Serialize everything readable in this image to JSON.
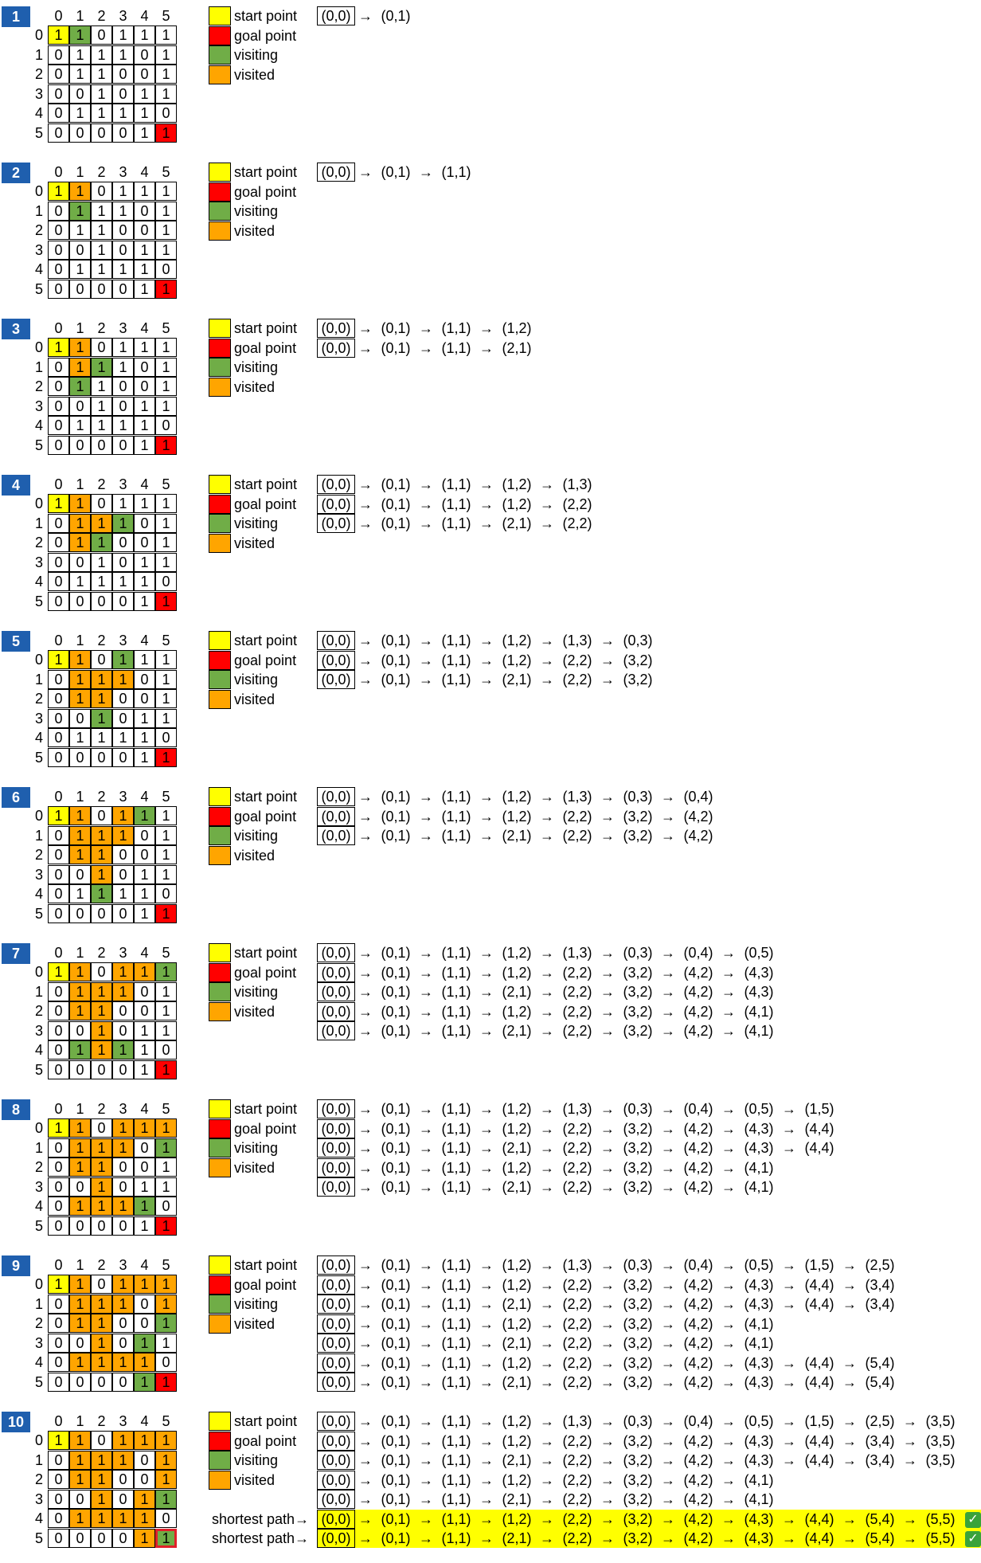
{
  "column_labels": [
    "0",
    "1",
    "2",
    "3",
    "4",
    "5"
  ],
  "row_labels": [
    "0",
    "1",
    "2",
    "3",
    "4",
    "5"
  ],
  "legend": [
    {
      "label": "start point",
      "color": "#ffff00"
    },
    {
      "label": "goal point",
      "color": "#ff0000"
    },
    {
      "label": "visiting",
      "color": "#70ad47"
    },
    {
      "label": "visited",
      "color": "#ffa500"
    }
  ],
  "arrow": "→",
  "shortest_label": "shortest path→",
  "check_icon": "✓",
  "base_grid": [
    [
      "1",
      "1",
      "0",
      "1",
      "1",
      "1"
    ],
    [
      "0",
      "1",
      "1",
      "1",
      "0",
      "1"
    ],
    [
      "0",
      "1",
      "1",
      "0",
      "0",
      "1"
    ],
    [
      "0",
      "0",
      "1",
      "0",
      "1",
      "1"
    ],
    [
      "0",
      "1",
      "1",
      "1",
      "1",
      "0"
    ],
    [
      "0",
      "0",
      "0",
      "0",
      "1",
      "1"
    ]
  ],
  "steps": [
    {
      "number": "1",
      "colors": [
        "SGNNNN",
        "NNNNNN",
        "NNNNNN",
        "NNNNNN",
        "NNNNNN",
        "NNNNNR"
      ],
      "paths": [
        [
          "(0,0)",
          "(0,1)"
        ]
      ]
    },
    {
      "number": "2",
      "colors": [
        "SVNNNN",
        "NGNNNN",
        "NNNNNN",
        "NNNNNN",
        "NNNNNN",
        "NNNNNR"
      ],
      "paths": [
        [
          "(0,0)",
          "(0,1)",
          "(1,1)"
        ]
      ]
    },
    {
      "number": "3",
      "colors": [
        "SVNNNN",
        "NVGNNN",
        "NGNNNN",
        "NNNNNN",
        "NNNNNN",
        "NNNNNR"
      ],
      "paths": [
        [
          "(0,0)",
          "(0,1)",
          "(1,1)",
          "(1,2)"
        ],
        [
          "(0,0)",
          "(0,1)",
          "(1,1)",
          "(2,1)"
        ]
      ]
    },
    {
      "number": "4",
      "colors": [
        "SVNNNN",
        "NVVGNN",
        "NVGNNN",
        "NNNNNN",
        "NNNNNN",
        "NNNNNR"
      ],
      "paths": [
        [
          "(0,0)",
          "(0,1)",
          "(1,1)",
          "(1,2)",
          "(1,3)"
        ],
        [
          "(0,0)",
          "(0,1)",
          "(1,1)",
          "(1,2)",
          "(2,2)"
        ],
        [
          "(0,0)",
          "(0,1)",
          "(1,1)",
          "(2,1)",
          "(2,2)"
        ]
      ]
    },
    {
      "number": "5",
      "colors": [
        "SVNGNN",
        "NVVVNN",
        "NVVNNN",
        "NNGNNN",
        "NNNNNN",
        "NNNNNR"
      ],
      "paths": [
        [
          "(0,0)",
          "(0,1)",
          "(1,1)",
          "(1,2)",
          "(1,3)",
          "(0,3)"
        ],
        [
          "(0,0)",
          "(0,1)",
          "(1,1)",
          "(1,2)",
          "(2,2)",
          "(3,2)"
        ],
        [
          "(0,0)",
          "(0,1)",
          "(1,1)",
          "(2,1)",
          "(2,2)",
          "(3,2)"
        ]
      ]
    },
    {
      "number": "6",
      "colors": [
        "SVNVGN",
        "NVVVNN",
        "NVVNNN",
        "NNVNNN",
        "NNGNNN",
        "NNNNNR"
      ],
      "paths": [
        [
          "(0,0)",
          "(0,1)",
          "(1,1)",
          "(1,2)",
          "(1,3)",
          "(0,3)",
          "(0,4)"
        ],
        [
          "(0,0)",
          "(0,1)",
          "(1,1)",
          "(1,2)",
          "(2,2)",
          "(3,2)",
          "(4,2)"
        ],
        [
          "(0,0)",
          "(0,1)",
          "(1,1)",
          "(2,1)",
          "(2,2)",
          "(3,2)",
          "(4,2)"
        ]
      ]
    },
    {
      "number": "7",
      "colors": [
        "SVNVVG",
        "NVVVNN",
        "NVVNNN",
        "NNVNNN",
        "NGVGNN",
        "NNNNNR"
      ],
      "paths": [
        [
          "(0,0)",
          "(0,1)",
          "(1,1)",
          "(1,2)",
          "(1,3)",
          "(0,3)",
          "(0,4)",
          "(0,5)"
        ],
        [
          "(0,0)",
          "(0,1)",
          "(1,1)",
          "(1,2)",
          "(2,2)",
          "(3,2)",
          "(4,2)",
          "(4,3)"
        ],
        [
          "(0,0)",
          "(0,1)",
          "(1,1)",
          "(2,1)",
          "(2,2)",
          "(3,2)",
          "(4,2)",
          "(4,3)"
        ],
        [
          "(0,0)",
          "(0,1)",
          "(1,1)",
          "(1,2)",
          "(2,2)",
          "(3,2)",
          "(4,2)",
          "(4,1)"
        ],
        [
          "(0,0)",
          "(0,1)",
          "(1,1)",
          "(2,1)",
          "(2,2)",
          "(3,2)",
          "(4,2)",
          "(4,1)"
        ]
      ]
    },
    {
      "number": "8",
      "colors": [
        "SVNVVV",
        "NVVVNG",
        "NVVNNN",
        "NNVNNN",
        "NVVVGN",
        "NNNNNR"
      ],
      "paths": [
        [
          "(0,0)",
          "(0,1)",
          "(1,1)",
          "(1,2)",
          "(1,3)",
          "(0,3)",
          "(0,4)",
          "(0,5)",
          "(1,5)"
        ],
        [
          "(0,0)",
          "(0,1)",
          "(1,1)",
          "(1,2)",
          "(2,2)",
          "(3,2)",
          "(4,2)",
          "(4,3)",
          "(4,4)"
        ],
        [
          "(0,0)",
          "(0,1)",
          "(1,1)",
          "(2,1)",
          "(2,2)",
          "(3,2)",
          "(4,2)",
          "(4,3)",
          "(4,4)"
        ],
        [
          "(0,0)",
          "(0,1)",
          "(1,1)",
          "(1,2)",
          "(2,2)",
          "(3,2)",
          "(4,2)",
          "(4,1)"
        ],
        [
          "(0,0)",
          "(0,1)",
          "(1,1)",
          "(2,1)",
          "(2,2)",
          "(3,2)",
          "(4,2)",
          "(4,1)"
        ]
      ]
    },
    {
      "number": "9",
      "colors": [
        "SVNVVV",
        "NVVVNV",
        "NVVNNG",
        "NNVNGN",
        "NVVVVN",
        "NNNNGR"
      ],
      "paths": [
        [
          "(0,0)",
          "(0,1)",
          "(1,1)",
          "(1,2)",
          "(1,3)",
          "(0,3)",
          "(0,4)",
          "(0,5)",
          "(1,5)",
          "(2,5)"
        ],
        [
          "(0,0)",
          "(0,1)",
          "(1,1)",
          "(1,2)",
          "(2,2)",
          "(3,2)",
          "(4,2)",
          "(4,3)",
          "(4,4)",
          "(3,4)"
        ],
        [
          "(0,0)",
          "(0,1)",
          "(1,1)",
          "(2,1)",
          "(2,2)",
          "(3,2)",
          "(4,2)",
          "(4,3)",
          "(4,4)",
          "(3,4)"
        ],
        [
          "(0,0)",
          "(0,1)",
          "(1,1)",
          "(1,2)",
          "(2,2)",
          "(3,2)",
          "(4,2)",
          "(4,1)"
        ],
        [
          "(0,0)",
          "(0,1)",
          "(1,1)",
          "(2,1)",
          "(2,2)",
          "(3,2)",
          "(4,2)",
          "(4,1)"
        ],
        [
          "(0,0)",
          "(0,1)",
          "(1,1)",
          "(1,2)",
          "(2,2)",
          "(3,2)",
          "(4,2)",
          "(4,3)",
          "(4,4)",
          "(5,4)"
        ],
        [
          "(0,0)",
          "(0,1)",
          "(1,1)",
          "(2,1)",
          "(2,2)",
          "(3,2)",
          "(4,2)",
          "(4,3)",
          "(4,4)",
          "(5,4)"
        ]
      ]
    },
    {
      "number": "10",
      "colors": [
        "SVNVVV",
        "NVVVNV",
        "NVVNNV",
        "NNVNVG",
        "NVVVVN",
        "NNNNVG"
      ],
      "outline_cell": [
        5,
        5
      ],
      "paths": [
        [
          "(0,0)",
          "(0,1)",
          "(1,1)",
          "(1,2)",
          "(1,3)",
          "(0,3)",
          "(0,4)",
          "(0,5)",
          "(1,5)",
          "(2,5)",
          "(3,5)"
        ],
        [
          "(0,0)",
          "(0,1)",
          "(1,1)",
          "(1,2)",
          "(2,2)",
          "(3,2)",
          "(4,2)",
          "(4,3)",
          "(4,4)",
          "(3,4)",
          "(3,5)"
        ],
        [
          "(0,0)",
          "(0,1)",
          "(1,1)",
          "(2,1)",
          "(2,2)",
          "(3,2)",
          "(4,2)",
          "(4,3)",
          "(4,4)",
          "(3,4)",
          "(3,5)"
        ],
        [
          "(0,0)",
          "(0,1)",
          "(1,1)",
          "(1,2)",
          "(2,2)",
          "(3,2)",
          "(4,2)",
          "(4,1)"
        ],
        [
          "(0,0)",
          "(0,1)",
          "(1,1)",
          "(2,1)",
          "(2,2)",
          "(3,2)",
          "(4,2)",
          "(4,1)"
        ],
        [
          "(0,0)",
          "(0,1)",
          "(1,1)",
          "(1,2)",
          "(2,2)",
          "(3,2)",
          "(4,2)",
          "(4,3)",
          "(4,4)",
          "(5,4)",
          "(5,5)"
        ],
        [
          "(0,0)",
          "(0,1)",
          "(1,1)",
          "(2,1)",
          "(2,2)",
          "(3,2)",
          "(4,2)",
          "(4,3)",
          "(4,4)",
          "(5,4)",
          "(5,5)"
        ]
      ],
      "shortest_rows": [
        5,
        6
      ]
    }
  ]
}
